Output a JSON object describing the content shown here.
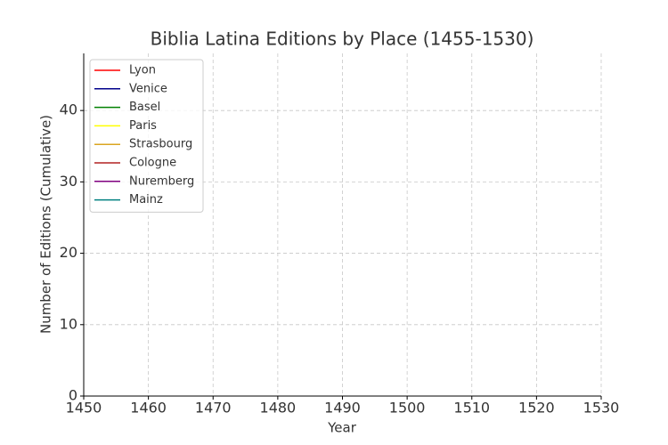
{
  "chart_data": {
    "type": "line",
    "title": "Biblia Latina Editions by Place (1455-1530)",
    "x_label": "Year",
    "y_label": "Number of Editions (Cumulative)",
    "x": [],
    "series": [
      {
        "name": "Lyon",
        "color": "#ff0000",
        "values": []
      },
      {
        "name": "Venice",
        "color": "#00008b",
        "values": []
      },
      {
        "name": "Basel",
        "color": "#008000",
        "values": []
      },
      {
        "name": "Paris",
        "color": "#ffff00",
        "values": []
      },
      {
        "name": "Strasbourg",
        "color": "#daa520",
        "values": []
      },
      {
        "name": "Cologne",
        "color": "#b22222",
        "values": []
      },
      {
        "name": "Nuremberg",
        "color": "#800080",
        "values": []
      },
      {
        "name": "Mainz",
        "color": "#008080",
        "values": []
      }
    ],
    "xlim": [
      1450,
      1530
    ],
    "xticks": [
      1450,
      1460,
      1470,
      1480,
      1490,
      1500,
      1510,
      1520,
      1530
    ],
    "ylim": [
      0,
      48
    ],
    "yticks": [
      0,
      10,
      20,
      30,
      40
    ],
    "grid": true,
    "legend": "upper-left"
  }
}
